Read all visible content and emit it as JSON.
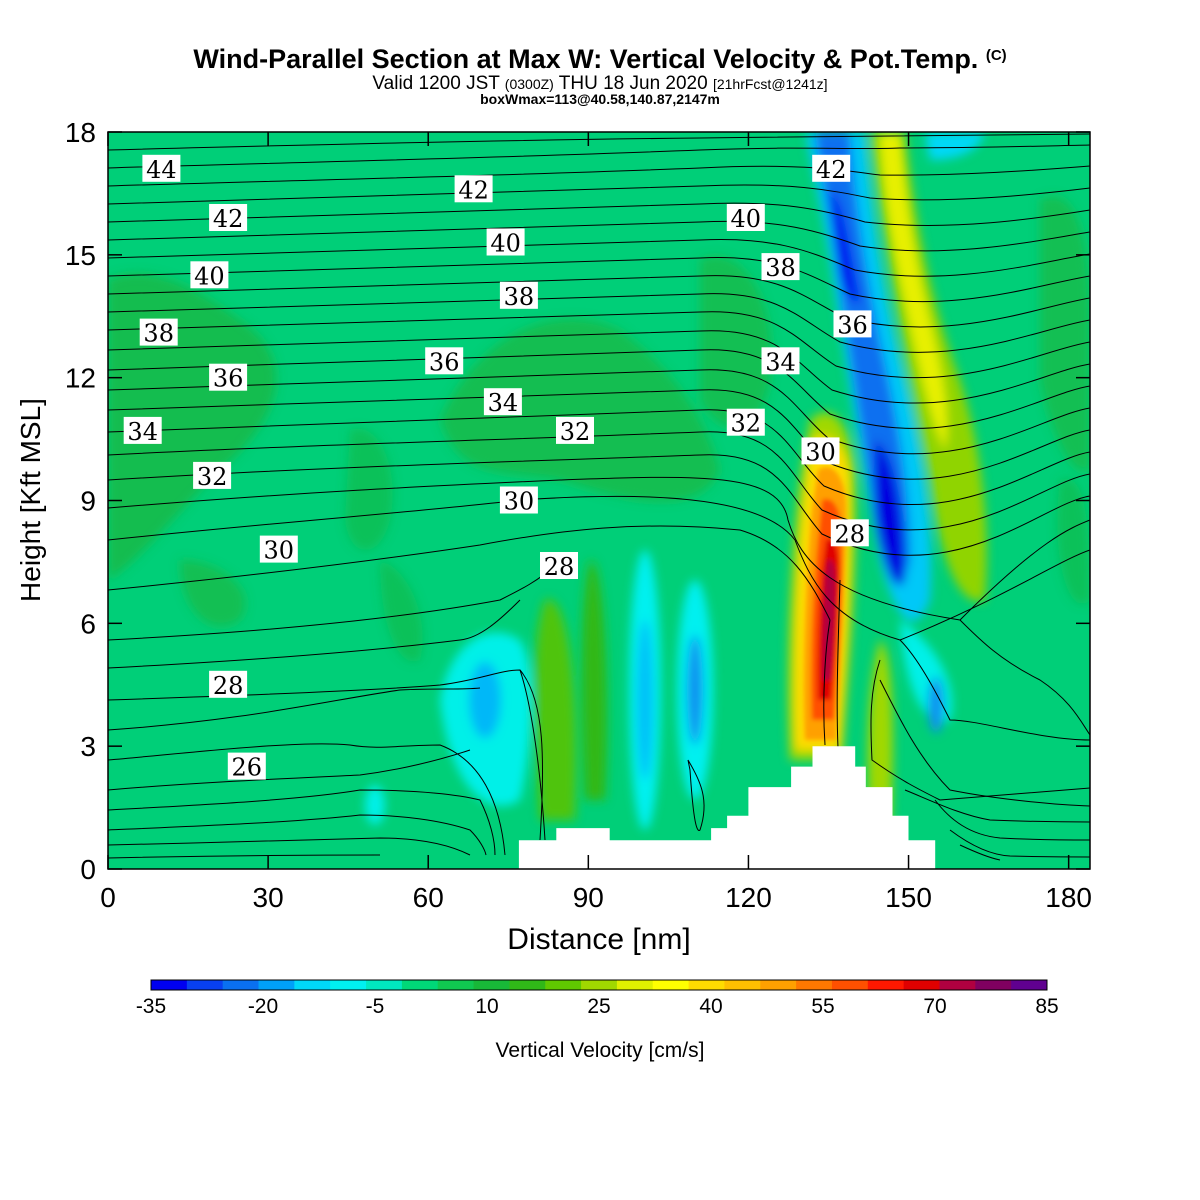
{
  "header": {
    "title": "Wind-Parallel Section at Max W: Vertical Velocity & Pot.Temp.",
    "copyright": "(C)",
    "valid_prefix": "Valid 1200 JST",
    "valid_utc": "(0300Z)",
    "valid_date": "THU 18 Jun 2020",
    "forecast": "[21hrFcst@1241z]",
    "box_note": "boxWmax=113@40.58,140.87,2147m"
  },
  "chart_data": {
    "type": "heatmap",
    "title": "Wind-Parallel Section at Max W: Vertical Velocity & Pot.Temp.",
    "xlabel": "Distance [nm]",
    "ylabel": "Height [Kft MSL]",
    "xlim": [
      0,
      184
    ],
    "ylim": [
      0,
      18
    ],
    "x_ticks": [
      "0",
      "30",
      "60",
      "90",
      "120",
      "150",
      "180"
    ],
    "y_ticks": [
      "0",
      "3",
      "6",
      "9",
      "12",
      "15",
      "18"
    ],
    "grid": false,
    "colorbar": {
      "label": "Vertical Velocity [cm/s]",
      "placement": "bottom",
      "tick_labels": [
        "-35",
        "-20",
        "-5",
        "10",
        "25",
        "40",
        "55",
        "70",
        "85"
      ],
      "colors": [
        "#0000f0",
        "#0840f0",
        "#0a70f0",
        "#00a0f8",
        "#00d8f8",
        "#00f0f0",
        "#00e8c0",
        "#00d878",
        "#10c850",
        "#18b838",
        "#30b818",
        "#60c800",
        "#a0d800",
        "#e0f000",
        "#ffff00",
        "#ffdc00",
        "#ffc000",
        "#ffa000",
        "#ff7800",
        "#ff5000",
        "#ff1800",
        "#e00000",
        "#b00040",
        "#800060",
        "#600090"
      ]
    },
    "theta_contours": {
      "units": "potential temperature (isentrope labels)",
      "labels": [
        {
          "text": "44",
          "x": 10,
          "y": 17.1
        },
        {
          "text": "42",
          "x": 22.5,
          "y": 15.9
        },
        {
          "text": "40",
          "x": 19,
          "y": 14.5
        },
        {
          "text": "38",
          "x": 9.5,
          "y": 13.1
        },
        {
          "text": "36",
          "x": 22.5,
          "y": 12.0
        },
        {
          "text": "34",
          "x": 6.5,
          "y": 10.7
        },
        {
          "text": "32",
          "x": 19.5,
          "y": 9.6
        },
        {
          "text": "30",
          "x": 32,
          "y": 7.8
        },
        {
          "text": "28",
          "x": 22.5,
          "y": 4.5
        },
        {
          "text": "26",
          "x": 26,
          "y": 2.5
        },
        {
          "text": "42",
          "x": 68.5,
          "y": 16.6
        },
        {
          "text": "40",
          "x": 74.5,
          "y": 15.3
        },
        {
          "text": "38",
          "x": 77,
          "y": 14.0
        },
        {
          "text": "36",
          "x": 63,
          "y": 12.4
        },
        {
          "text": "34",
          "x": 74,
          "y": 11.4
        },
        {
          "text": "32",
          "x": 87.5,
          "y": 10.7
        },
        {
          "text": "30",
          "x": 77,
          "y": 9.0
        },
        {
          "text": "28",
          "x": 84.5,
          "y": 7.4
        },
        {
          "text": "40",
          "x": 119.5,
          "y": 15.9
        },
        {
          "text": "38",
          "x": 126,
          "y": 14.7
        },
        {
          "text": "34",
          "x": 126,
          "y": 12.4
        },
        {
          "text": "32",
          "x": 119.5,
          "y": 10.9
        },
        {
          "text": "42",
          "x": 135.5,
          "y": 17.1
        },
        {
          "text": "36",
          "x": 139.5,
          "y": 13.3
        },
        {
          "text": "30",
          "x": 133.5,
          "y": 10.2
        },
        {
          "text": "28",
          "x": 139,
          "y": 8.2
        }
      ]
    },
    "terrain_profile": {
      "x": [
        0,
        77,
        77,
        84,
        84,
        94,
        94,
        113,
        113,
        116,
        116,
        120,
        120,
        128,
        128,
        132,
        132,
        140,
        140,
        142,
        142,
        147,
        147,
        150,
        150,
        155,
        155,
        184
      ],
      "y": [
        0,
        0,
        0.7,
        0.7,
        1.0,
        1.0,
        0.7,
        0.7,
        1.0,
        1.0,
        1.3,
        1.3,
        2.0,
        2.0,
        2.5,
        2.5,
        3.0,
        3.0,
        2.5,
        2.5,
        2.0,
        2.0,
        1.3,
        1.3,
        0.7,
        0.7,
        0,
        0
      ]
    },
    "features": [
      {
        "name": "updraft core",
        "x_center": 135.5,
        "w_max_cm_s": 75
      },
      {
        "name": "downdraft band",
        "x_center": 143,
        "w_min_cm_s": -30
      }
    ]
  }
}
